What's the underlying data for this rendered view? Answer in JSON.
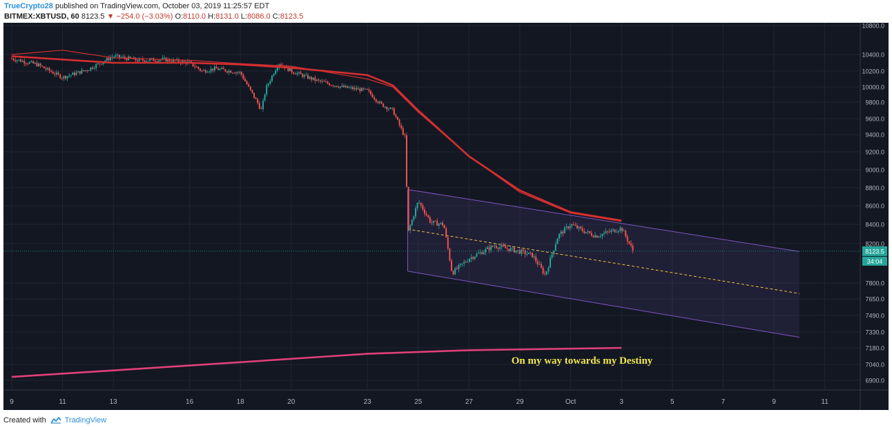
{
  "header": {
    "author": "TrueCrypto28",
    "published_text": "published on TradingView.com, October 03, 2019 11:25:57 EDT",
    "symbol": "BITMEX:XBTUSD, 60",
    "last": "8123.5",
    "change": "−254.0 (−3.03%)",
    "ohlc": [
      {
        "k": "O:",
        "v": "8110.0"
      },
      {
        "k": "H:",
        "v": "8131.0"
      },
      {
        "k": "L:",
        "v": "8086.0"
      },
      {
        "k": "C:",
        "v": "8123.5"
      }
    ]
  },
  "footer": {
    "created_with": "Created with",
    "brand": "TradingView"
  },
  "colors": {
    "background": "#131722",
    "up": "#26a69a",
    "down": "#ef5350",
    "ma": "#d32f2f",
    "ma_long": "#e0407a",
    "channel": "#7e57c2",
    "midline": "#f5c542",
    "annotation": "#f2e84f",
    "price_line": "#26a69a"
  },
  "chart_data": {
    "type": "candlestick",
    "x_tick_labels": [
      "9",
      "11",
      "13",
      "16",
      "18",
      "20",
      "23",
      "25",
      "27",
      "29",
      "Oct",
      "3",
      "5",
      "7",
      "9",
      "11"
    ],
    "y_tick_labels": [
      "10800.0",
      "10400.0",
      "10200.0",
      "10000.0",
      "9800.0",
      "9600.0",
      "9400.0",
      "9200.0",
      "9000.0",
      "8800.0",
      "8600.0",
      "8400.0",
      "8200.0",
      "7800.0",
      "7650.0",
      "7490.0",
      "7330.0",
      "7180.0",
      "7040.0",
      "6900.0"
    ],
    "current_price_label": "8123.5",
    "countdown_label": "34:04",
    "annotation": "On my way towards my Destiny",
    "price_path": [
      [
        "Sep 9",
        10350
      ],
      [
        "Sep 10",
        10280
      ],
      [
        "Sep 11",
        10120
      ],
      [
        "Sep 12",
        10220
      ],
      [
        "Sep 13",
        10380
      ],
      [
        "Sep 14",
        10330
      ],
      [
        "Sep 15",
        10340
      ],
      [
        "Sep 16",
        10300
      ],
      [
        "Sep 16 12:00",
        10200
      ],
      [
        "Sep 17",
        10230
      ],
      [
        "Sep 18",
        10180
      ],
      [
        "Sep 18 20:00",
        9700
      ],
      [
        "Sep 19",
        9980
      ],
      [
        "Sep 19 12:00",
        10300
      ],
      [
        "Sep 20",
        10200
      ],
      [
        "Sep 21",
        10080
      ],
      [
        "Sep 22",
        10000
      ],
      [
        "Sep 23",
        9950
      ],
      [
        "Sep 23 12:00",
        9780
      ],
      [
        "Sep 24",
        9700
      ],
      [
        "Sep 24 12:00",
        9350
      ],
      [
        "Sep 24 14:00",
        8300
      ],
      [
        "Sep 25",
        8650
      ],
      [
        "Sep 25 12:00",
        8420
      ],
      [
        "Sep 26",
        8400
      ],
      [
        "Sep 26 08:00",
        7900
      ],
      [
        "Sep 27",
        8050
      ],
      [
        "Sep 28",
        8180
      ],
      [
        "Sep 29",
        8120
      ],
      [
        "Sep 29 12:00",
        8080
      ],
      [
        "Sep 30",
        7880
      ],
      [
        "Sep 30 12:00",
        8280
      ],
      [
        "Oct 1",
        8400
      ],
      [
        "Oct 1 12:00",
        8330
      ],
      [
        "Oct 2",
        8280
      ],
      [
        "Oct 3",
        8360
      ],
      [
        "Oct 3 11:00",
        8123.5
      ]
    ],
    "moving_averages": [
      {
        "points": [
          [
            "Sep 9",
            10400
          ],
          [
            "Sep 11",
            10460
          ],
          [
            "Sep 13",
            10360
          ],
          [
            "Sep 16",
            10330
          ],
          [
            "Sep 18",
            10290
          ],
          [
            "Sep 20",
            10260
          ],
          [
            "Sep 23",
            10100
          ],
          [
            "Sep 24",
            10000
          ],
          [
            "Sep 25",
            9680
          ],
          [
            "Sep 27",
            9150
          ],
          [
            "Sep 29",
            8750
          ],
          [
            "Oct 1",
            8520
          ],
          [
            "Oct 3",
            8430
          ]
        ]
      },
      {
        "points": [
          [
            "Sep 9",
            10380
          ],
          [
            "Sep 13",
            10300
          ],
          [
            "Sep 16",
            10300
          ],
          [
            "Sep 18",
            10280
          ],
          [
            "Sep 20",
            10240
          ],
          [
            "Sep 23",
            10150
          ],
          [
            "Sep 24",
            10020
          ],
          [
            "Sep 25",
            9700
          ],
          [
            "Sep 27",
            9150
          ],
          [
            "Sep 29",
            8770
          ],
          [
            "Oct 1",
            8530
          ],
          [
            "Oct 3",
            8440
          ]
        ]
      },
      {
        "points": [
          [
            "Sep 9",
            6930
          ],
          [
            "Sep 16",
            7030
          ],
          [
            "Sep 23",
            7130
          ],
          [
            "Sep 27",
            7160
          ],
          [
            "Oct 3",
            7180
          ]
        ]
      }
    ],
    "channel": {
      "upper": [
        [
          "Sep 24 14:00",
          8780
        ],
        [
          "Oct 10",
          8120
        ]
      ],
      "lower": [
        [
          "Sep 24 14:00",
          7920
        ],
        [
          "Oct 10",
          7280
        ]
      ],
      "mid": [
        [
          "Sep 24 14:00",
          8350
        ],
        [
          "Oct 10",
          7700
        ]
      ]
    }
  }
}
